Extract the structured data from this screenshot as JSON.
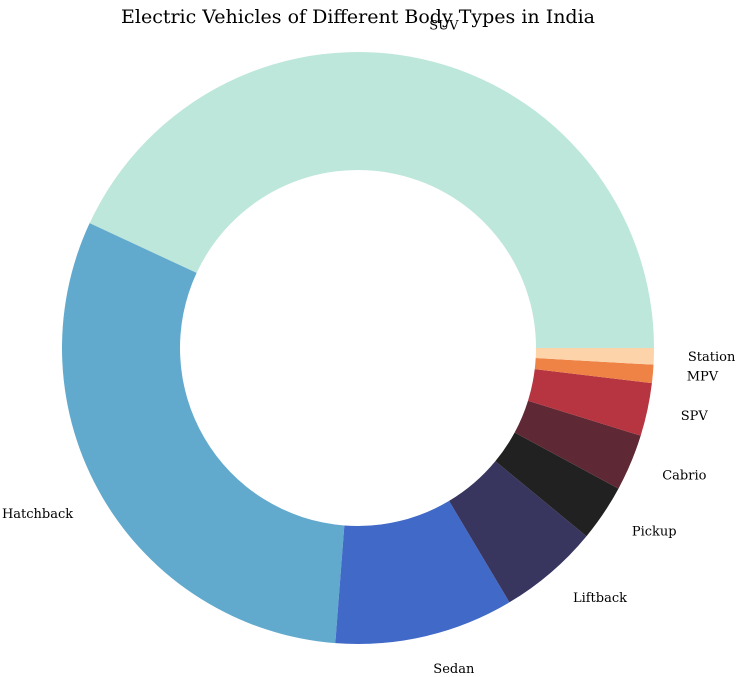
{
  "chart_data": {
    "type": "pie",
    "donut": true,
    "title": "Electric Vehicles of Different Body Types in India",
    "start_angle_deg": 0,
    "direction": "counterclockwise",
    "categories": [
      "SUV",
      "Hatchback",
      "Sedan",
      "Liftback",
      "Pickup",
      "Cabrio",
      "SPV",
      "MPV",
      "Station"
    ],
    "values": [
      43.2,
      30.8,
      9.8,
      5.5,
      3.1,
      3.1,
      2.9,
      1.0,
      0.9
    ],
    "colors": [
      "#BEE7DB",
      "#62AACD",
      "#4169C8",
      "#38355F",
      "#212121",
      "#5E2935",
      "#B63540",
      "#EE8345",
      "#FDD3AA"
    ]
  }
}
